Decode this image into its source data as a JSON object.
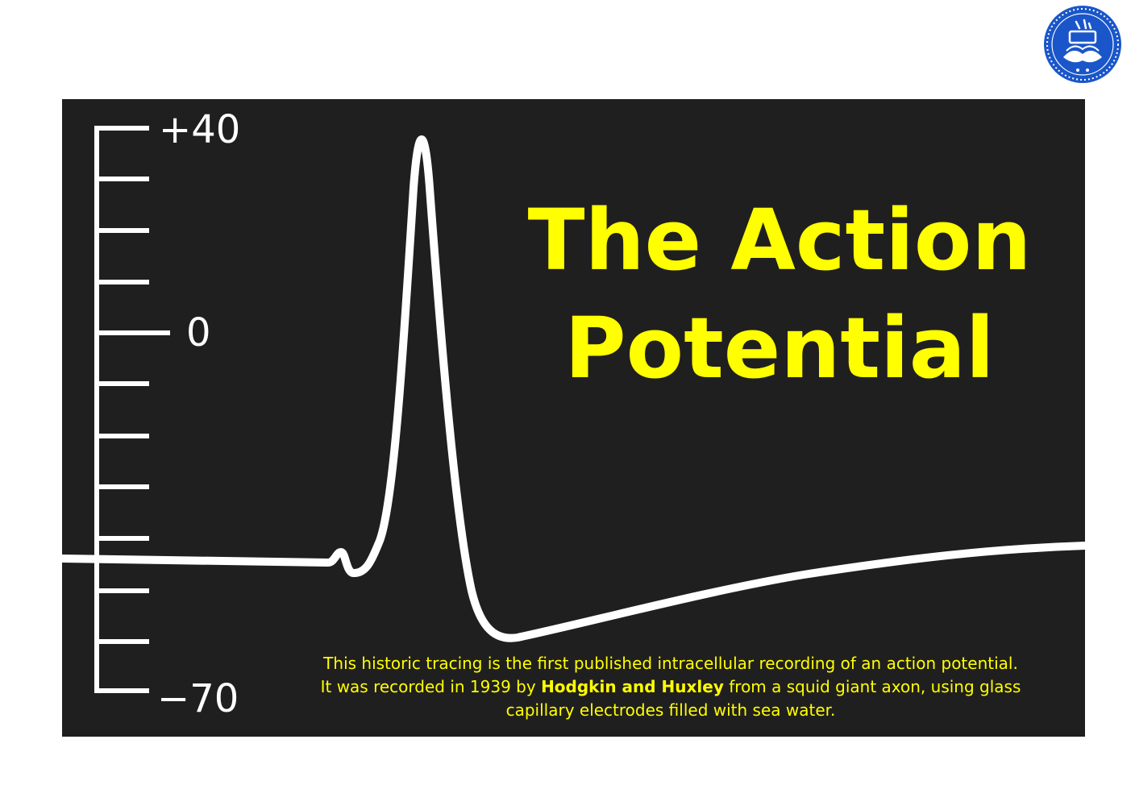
{
  "title": {
    "line1": "The Action",
    "line2": "Potential"
  },
  "scale": {
    "top_label": "+40",
    "zero_label": "0",
    "bottom_label": "−70",
    "range_mV": [
      -70,
      40
    ]
  },
  "caption": {
    "line1": "This historic tracing is the first published intracellular recording of an action potential.",
    "line2_before": "It was recorded in 1939 by",
    "line2_bold": "Hodgkin and Huxley",
    "line2_after": "from a squid giant axon, using glass",
    "line3": "capillary electrodes filled with sea water."
  },
  "logo": {
    "icon": "university-of-tehran-seal-icon",
    "color": "#1a56c9"
  },
  "colors": {
    "panel_background": "#201f1f",
    "title_text": "#ffff00",
    "trace": "#ffffff"
  }
}
